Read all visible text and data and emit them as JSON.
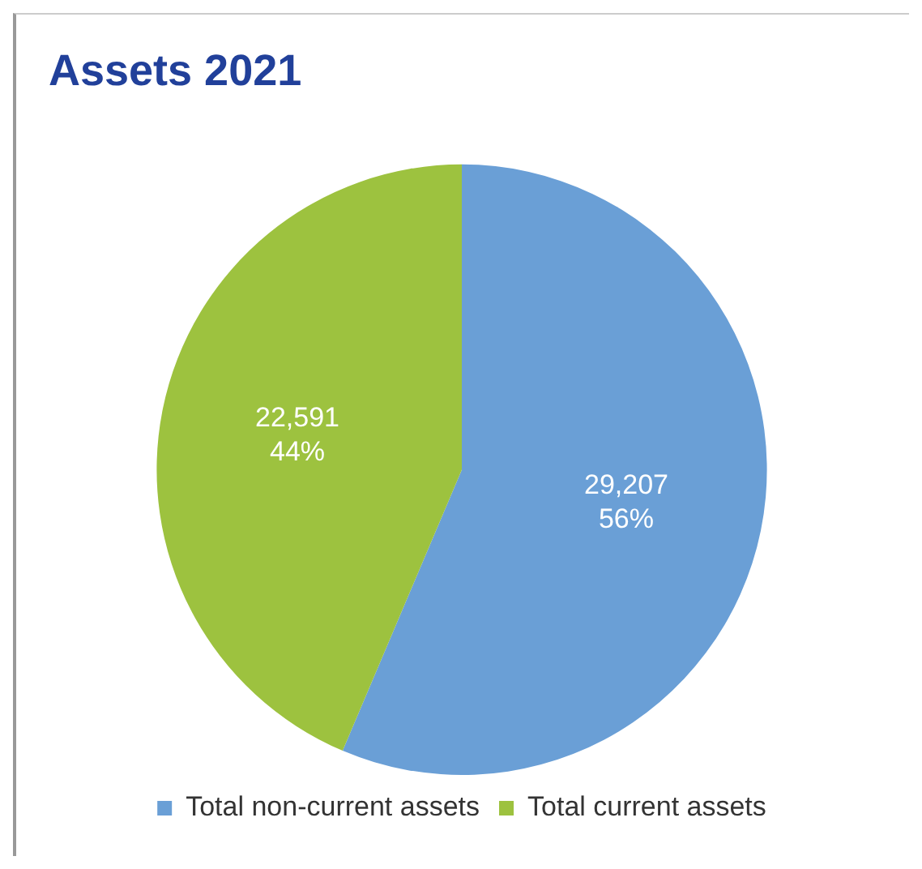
{
  "chart_data": {
    "type": "pie",
    "title": "Assets 2021",
    "categories": [
      "Total non-current assets",
      "Total current assets"
    ],
    "values": [
      29207,
      22591
    ],
    "colors": [
      "#6a9fd6",
      "#9dc23f"
    ],
    "value_labels": [
      "29,207\n56%",
      "22,591\n44%"
    ],
    "legend": "bottom"
  }
}
